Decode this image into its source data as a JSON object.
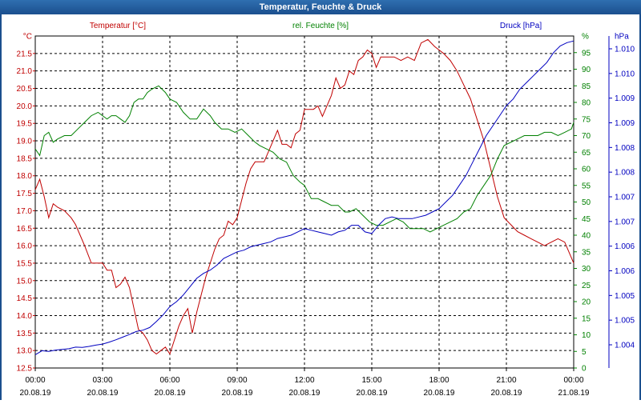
{
  "window": {
    "title": "Temperatur, Feuchte & Druck"
  },
  "colors": {
    "temperature": "#c00000",
    "humidity": "#008000",
    "pressure": "#0000c0",
    "grid": "#000000"
  },
  "chart_data": {
    "type": "line",
    "title": "Temperatur, Feuchte & Druck",
    "xlim": [
      0,
      24
    ],
    "grid": true,
    "x_ticks": [
      {
        "x": 0,
        "time": "00:00",
        "date": "20.08.19"
      },
      {
        "x": 3,
        "time": "03:00",
        "date": "20.08.19"
      },
      {
        "x": 6,
        "time": "06:00",
        "date": "20.08.19"
      },
      {
        "x": 9,
        "time": "09:00",
        "date": "20.08.19"
      },
      {
        "x": 12,
        "time": "12:00",
        "date": "20.08.19"
      },
      {
        "x": 15,
        "time": "15:00",
        "date": "20.08.19"
      },
      {
        "x": 18,
        "time": "18:00",
        "date": "20.08.19"
      },
      {
        "x": 21,
        "time": "21:00",
        "date": "20.08.19"
      },
      {
        "x": 24,
        "time": "00:00",
        "date": "21.08.19"
      }
    ],
    "axes": {
      "temperature": {
        "label": "Temperatur [°C]",
        "unit": "°C",
        "ylim": [
          12.5,
          22.0
        ],
        "ticks": [
          "12.5",
          "13.0",
          "13.5",
          "14.0",
          "14.5",
          "15.0",
          "15.5",
          "16.0",
          "16.5",
          "17.0",
          "17.5",
          "18.0",
          "18.5",
          "19.0",
          "19.5",
          "20.0",
          "20.5",
          "21.0",
          "21.5"
        ]
      },
      "humidity": {
        "label": "rel. Feuchte [%]",
        "unit": "%",
        "ylim": [
          0,
          100
        ],
        "ticks": [
          "0",
          "5",
          "10",
          "15",
          "20",
          "25",
          "30",
          "35",
          "40",
          "45",
          "50",
          "55",
          "60",
          "65",
          "70",
          "75",
          "80",
          "85",
          "90",
          "95"
        ]
      },
      "pressure": {
        "label": "Druck [hPa]",
        "unit": "hPa",
        "ticks": [
          "1.004",
          "1.005",
          "1.005",
          "1.006",
          "1.006",
          "1.007",
          "1.007",
          "1.008",
          "1.008",
          "1.009",
          "1.009",
          "1.010",
          "1.010"
        ]
      }
    },
    "series": [
      {
        "name": "Temperatur [°C]",
        "axis": "temperature",
        "points": [
          [
            0,
            17.6
          ],
          [
            0.2,
            17.9
          ],
          [
            0.4,
            17.4
          ],
          [
            0.6,
            16.8
          ],
          [
            0.8,
            17.2
          ],
          [
            1,
            17.1
          ],
          [
            1.3,
            17.0
          ],
          [
            1.6,
            16.8
          ],
          [
            1.8,
            16.6
          ],
          [
            2,
            16.3
          ],
          [
            2.2,
            16.0
          ],
          [
            2.5,
            15.5
          ],
          [
            2.8,
            15.5
          ],
          [
            3,
            15.5
          ],
          [
            3.2,
            15.3
          ],
          [
            3.4,
            15.3
          ],
          [
            3.6,
            14.8
          ],
          [
            3.8,
            14.9
          ],
          [
            4,
            15.1
          ],
          [
            4.2,
            14.8
          ],
          [
            4.4,
            14.2
          ],
          [
            4.6,
            13.6
          ],
          [
            4.8,
            13.5
          ],
          [
            5,
            13.3
          ],
          [
            5.2,
            13.0
          ],
          [
            5.4,
            12.9
          ],
          [
            5.6,
            13.0
          ],
          [
            5.8,
            13.1
          ],
          [
            6,
            12.9
          ],
          [
            6.2,
            13.3
          ],
          [
            6.4,
            13.7
          ],
          [
            6.6,
            14.0
          ],
          [
            6.8,
            14.2
          ],
          [
            7,
            13.5
          ],
          [
            7.2,
            14.1
          ],
          [
            7.4,
            14.6
          ],
          [
            7.6,
            15.1
          ],
          [
            7.8,
            15.5
          ],
          [
            8,
            15.9
          ],
          [
            8.2,
            16.2
          ],
          [
            8.4,
            16.3
          ],
          [
            8.6,
            16.7
          ],
          [
            8.8,
            16.6
          ],
          [
            9,
            16.8
          ],
          [
            9.2,
            17.3
          ],
          [
            9.4,
            17.8
          ],
          [
            9.6,
            18.2
          ],
          [
            9.8,
            18.4
          ],
          [
            10,
            18.4
          ],
          [
            10.2,
            18.4
          ],
          [
            10.4,
            18.7
          ],
          [
            10.6,
            19.0
          ],
          [
            10.8,
            19.3
          ],
          [
            11,
            18.9
          ],
          [
            11.2,
            18.9
          ],
          [
            11.4,
            18.8
          ],
          [
            11.6,
            19.2
          ],
          [
            11.8,
            19.3
          ],
          [
            12,
            19.9
          ],
          [
            12.2,
            19.9
          ],
          [
            12.4,
            19.9
          ],
          [
            12.6,
            20.0
          ],
          [
            12.8,
            19.7
          ],
          [
            13,
            20.0
          ],
          [
            13.2,
            20.3
          ],
          [
            13.4,
            20.8
          ],
          [
            13.6,
            20.5
          ],
          [
            13.8,
            20.6
          ],
          [
            14,
            21.0
          ],
          [
            14.2,
            20.9
          ],
          [
            14.4,
            21.3
          ],
          [
            14.6,
            21.4
          ],
          [
            14.8,
            21.6
          ],
          [
            15,
            21.5
          ],
          [
            15.2,
            21.1
          ],
          [
            15.4,
            21.4
          ],
          [
            15.6,
            21.4
          ],
          [
            15.8,
            21.4
          ],
          [
            16,
            21.4
          ],
          [
            16.3,
            21.3
          ],
          [
            16.6,
            21.4
          ],
          [
            16.9,
            21.3
          ],
          [
            17.2,
            21.8
          ],
          [
            17.5,
            21.9
          ],
          [
            17.8,
            21.7
          ],
          [
            18,
            21.6
          ],
          [
            18.2,
            21.5
          ],
          [
            18.5,
            21.3
          ],
          [
            18.8,
            21.0
          ],
          [
            19.1,
            20.6
          ],
          [
            19.4,
            20.2
          ],
          [
            19.7,
            19.6
          ],
          [
            20,
            19.0
          ],
          [
            20.3,
            18.2
          ],
          [
            20.6,
            17.4
          ],
          [
            20.9,
            16.8
          ],
          [
            21.2,
            16.6
          ],
          [
            21.5,
            16.4
          ],
          [
            21.8,
            16.3
          ],
          [
            22.1,
            16.2
          ],
          [
            22.4,
            16.1
          ],
          [
            22.7,
            16.0
          ],
          [
            23,
            16.1
          ],
          [
            23.3,
            16.2
          ],
          [
            23.6,
            16.1
          ],
          [
            23.8,
            15.8
          ],
          [
            24,
            15.5
          ]
        ]
      },
      {
        "name": "rel. Feuchte [%]",
        "axis": "humidity",
        "points": [
          [
            0,
            66
          ],
          [
            0.2,
            64
          ],
          [
            0.4,
            70
          ],
          [
            0.6,
            71
          ],
          [
            0.8,
            68
          ],
          [
            1,
            69
          ],
          [
            1.3,
            70
          ],
          [
            1.6,
            70
          ],
          [
            1.9,
            72
          ],
          [
            2.2,
            74
          ],
          [
            2.5,
            76
          ],
          [
            2.8,
            77
          ],
          [
            3,
            76
          ],
          [
            3.2,
            75
          ],
          [
            3.4,
            76
          ],
          [
            3.6,
            76
          ],
          [
            3.8,
            75
          ],
          [
            4,
            74
          ],
          [
            4.2,
            76
          ],
          [
            4.4,
            80
          ],
          [
            4.6,
            81
          ],
          [
            4.8,
            81
          ],
          [
            5,
            83
          ],
          [
            5.2,
            84
          ],
          [
            5.5,
            85
          ],
          [
            5.8,
            83
          ],
          [
            6,
            81
          ],
          [
            6.3,
            80
          ],
          [
            6.6,
            77
          ],
          [
            6.9,
            75
          ],
          [
            7.2,
            75
          ],
          [
            7.5,
            78
          ],
          [
            7.8,
            76
          ],
          [
            8,
            74
          ],
          [
            8.3,
            72
          ],
          [
            8.6,
            72
          ],
          [
            8.9,
            71
          ],
          [
            9.2,
            72
          ],
          [
            9.5,
            70
          ],
          [
            9.8,
            68
          ],
          [
            10,
            67
          ],
          [
            10.3,
            66
          ],
          [
            10.6,
            65
          ],
          [
            10.9,
            63
          ],
          [
            11.2,
            62
          ],
          [
            11.5,
            58
          ],
          [
            11.8,
            56
          ],
          [
            12,
            55
          ],
          [
            12.3,
            51
          ],
          [
            12.6,
            51
          ],
          [
            12.9,
            50
          ],
          [
            13.2,
            49
          ],
          [
            13.5,
            49
          ],
          [
            13.8,
            47
          ],
          [
            14,
            47
          ],
          [
            14.3,
            48
          ],
          [
            14.6,
            46
          ],
          [
            14.9,
            44
          ],
          [
            15.2,
            43
          ],
          [
            15.5,
            43
          ],
          [
            15.8,
            44
          ],
          [
            16.1,
            45
          ],
          [
            16.4,
            44
          ],
          [
            16.7,
            42
          ],
          [
            17,
            42
          ],
          [
            17.3,
            42
          ],
          [
            17.6,
            41
          ],
          [
            17.9,
            42
          ],
          [
            18.2,
            43
          ],
          [
            18.5,
            44
          ],
          [
            18.8,
            45
          ],
          [
            19.1,
            47
          ],
          [
            19.4,
            48
          ],
          [
            19.7,
            52
          ],
          [
            20,
            55
          ],
          [
            20.3,
            58
          ],
          [
            20.6,
            63
          ],
          [
            20.9,
            67
          ],
          [
            21.2,
            68
          ],
          [
            21.5,
            69
          ],
          [
            21.8,
            70
          ],
          [
            22.1,
            70
          ],
          [
            22.4,
            70
          ],
          [
            22.7,
            71
          ],
          [
            23,
            71
          ],
          [
            23.3,
            70
          ],
          [
            23.6,
            71
          ],
          [
            23.9,
            72
          ],
          [
            24,
            74
          ]
        ]
      },
      {
        "name": "Druck [hPa]",
        "axis": "pressure",
        "points": [
          [
            0,
            4.0
          ],
          [
            0.3,
            5.2
          ],
          [
            0.6,
            5.0
          ],
          [
            0.9,
            5.4
          ],
          [
            1.2,
            5.6
          ],
          [
            1.5,
            5.8
          ],
          [
            1.8,
            6.3
          ],
          [
            2.1,
            6.2
          ],
          [
            2.4,
            6.5
          ],
          [
            2.7,
            6.9
          ],
          [
            3,
            7.2
          ],
          [
            3.3,
            7.8
          ],
          [
            3.6,
            8.5
          ],
          [
            3.9,
            9.3
          ],
          [
            4.2,
            10.1
          ],
          [
            4.5,
            11.0
          ],
          [
            4.8,
            11.4
          ],
          [
            5.1,
            12.2
          ],
          [
            5.4,
            14.0
          ],
          [
            5.7,
            16.0
          ],
          [
            6,
            18.5
          ],
          [
            6.3,
            20.0
          ],
          [
            6.6,
            22.0
          ],
          [
            6.9,
            24.5
          ],
          [
            7.2,
            27.0
          ],
          [
            7.5,
            28.5
          ],
          [
            7.8,
            29.5
          ],
          [
            8.1,
            31.0
          ],
          [
            8.4,
            33.0
          ],
          [
            8.7,
            34.0
          ],
          [
            9,
            35.0
          ],
          [
            9.3,
            35.5
          ],
          [
            9.6,
            36.5
          ],
          [
            9.9,
            37.0
          ],
          [
            10.2,
            37.5
          ],
          [
            10.5,
            38.0
          ],
          [
            10.8,
            39.0
          ],
          [
            11.1,
            39.5
          ],
          [
            11.4,
            40.0
          ],
          [
            11.7,
            41.0
          ],
          [
            12,
            42.0
          ],
          [
            12.3,
            41.5
          ],
          [
            12.6,
            41.0
          ],
          [
            12.9,
            40.5
          ],
          [
            13.2,
            40.0
          ],
          [
            13.5,
            41.0
          ],
          [
            13.8,
            41.5
          ],
          [
            14.1,
            43.0
          ],
          [
            14.4,
            43.0
          ],
          [
            14.7,
            41.0
          ],
          [
            15,
            40.5
          ],
          [
            15.3,
            43.0
          ],
          [
            15.6,
            45.0
          ],
          [
            15.9,
            45.5
          ],
          [
            16.2,
            45.0
          ],
          [
            16.5,
            45.0
          ],
          [
            16.8,
            45.0
          ],
          [
            17.1,
            45.5
          ],
          [
            17.4,
            46.0
          ],
          [
            17.7,
            47.0
          ],
          [
            18,
            48.0
          ],
          [
            18.3,
            50.0
          ],
          [
            18.6,
            52.0
          ],
          [
            18.9,
            55.0
          ],
          [
            19.2,
            58.0
          ],
          [
            19.5,
            62.0
          ],
          [
            19.8,
            66.0
          ],
          [
            20.1,
            70.0
          ],
          [
            20.4,
            73.0
          ],
          [
            20.7,
            76.0
          ],
          [
            21,
            79.0
          ],
          [
            21.3,
            81.0
          ],
          [
            21.6,
            84.0
          ],
          [
            21.9,
            86.0
          ],
          [
            22.2,
            88.0
          ],
          [
            22.5,
            90.0
          ],
          [
            22.8,
            92.0
          ],
          [
            23.1,
            95.0
          ],
          [
            23.4,
            97.0
          ],
          [
            23.7,
            98.0
          ],
          [
            24,
            98.5
          ]
        ]
      }
    ]
  }
}
